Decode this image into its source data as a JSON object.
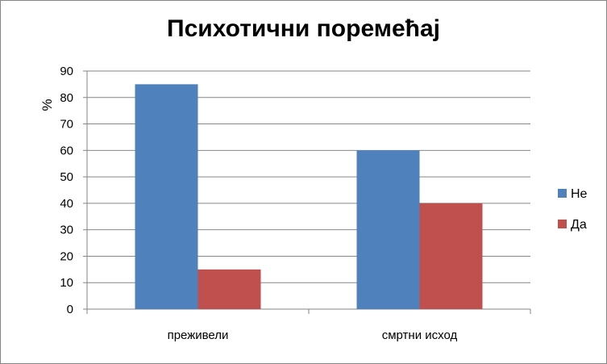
{
  "chart_data": {
    "type": "bar",
    "title": "Психотични поремећај",
    "xlabel": "",
    "ylabel": "%",
    "ylim": [
      0,
      90
    ],
    "yticks": [
      0,
      10,
      20,
      30,
      40,
      50,
      60,
      70,
      80,
      90
    ],
    "categories": [
      "преживели",
      "смртни исход"
    ],
    "series": [
      {
        "name": "Не",
        "values": [
          85,
          60
        ],
        "color": "#4f81bd"
      },
      {
        "name": "Да",
        "values": [
          15,
          40
        ],
        "color": "#c0504d"
      }
    ],
    "grid": true,
    "legend_position": "right"
  }
}
